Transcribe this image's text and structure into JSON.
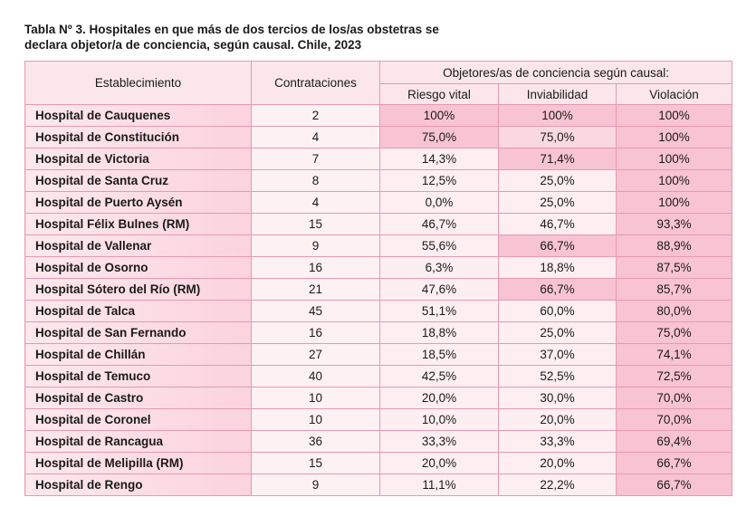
{
  "caption": {
    "line1": "Tabla Nº 3. Hospitales en que más de dos tercios de los/as obstetras se",
    "line2": "declara objetor/a de conciencia, según causal. Chile, 2023"
  },
  "headers": {
    "establecimiento": "Establecimiento",
    "contrataciones": "Contrataciones",
    "group": "Objetores/as de conciencia según causal:",
    "riesgo": "Riesgo vital",
    "inviabilidad": "Inviabilidad",
    "violacion": "Violación"
  },
  "rows": [
    {
      "name": "Hospital de Cauquenes",
      "contrataciones": "2",
      "riesgo": "100%",
      "inviabilidad": "100%",
      "violacion": "100%",
      "shade": [
        "hi",
        "hi",
        "hi"
      ]
    },
    {
      "name": "Hospital de Constitución",
      "contrataciones": "4",
      "riesgo": "75,0%",
      "inviabilidad": "75,0%",
      "violacion": "100%",
      "shade": [
        "hi",
        "mid",
        "hi"
      ]
    },
    {
      "name": "Hospital de Victoria",
      "contrataciones": "7",
      "riesgo": "14,3%",
      "inviabilidad": "71,4%",
      "violacion": "100%",
      "shade": [
        "lo",
        "hi",
        "hi"
      ]
    },
    {
      "name": "Hospital de Santa Cruz",
      "contrataciones": "8",
      "riesgo": "12,5%",
      "inviabilidad": "25,0%",
      "violacion": "100%",
      "shade": [
        "lo",
        "lo",
        "hi"
      ]
    },
    {
      "name": "Hospital de Puerto Aysén",
      "contrataciones": "4",
      "riesgo": "0,0%",
      "inviabilidad": "25,0%",
      "violacion": "100%",
      "shade": [
        "lo",
        "lo",
        "hi"
      ]
    },
    {
      "name": "Hospital Félix Bulnes (RM)",
      "contrataciones": "15",
      "riesgo": "46,7%",
      "inviabilidad": "46,7%",
      "violacion": "93,3%",
      "shade": [
        "lo",
        "lo",
        "hi"
      ]
    },
    {
      "name": "Hospital de Vallenar",
      "contrataciones": "9",
      "riesgo": "55,6%",
      "inviabilidad": "66,7%",
      "violacion": "88,9%",
      "shade": [
        "lo",
        "hi",
        "hi"
      ]
    },
    {
      "name": "Hospital de Osorno",
      "contrataciones": "16",
      "riesgo": "6,3%",
      "inviabilidad": "18,8%",
      "violacion": "87,5%",
      "shade": [
        "lo",
        "lo",
        "hi"
      ]
    },
    {
      "name": "Hospital Sótero del Río (RM)",
      "contrataciones": "21",
      "riesgo": "47,6%",
      "inviabilidad": "66,7%",
      "violacion": "85,7%",
      "shade": [
        "lo",
        "hi",
        "hi"
      ]
    },
    {
      "name": "Hospital de Talca",
      "contrataciones": "45",
      "riesgo": "51,1%",
      "inviabilidad": "60,0%",
      "violacion": "80,0%",
      "shade": [
        "lo",
        "lo",
        "hi"
      ]
    },
    {
      "name": "Hospital de San Fernando",
      "contrataciones": "16",
      "riesgo": "18,8%",
      "inviabilidad": "25,0%",
      "violacion": "75,0%",
      "shade": [
        "lo",
        "lo",
        "hi"
      ]
    },
    {
      "name": "Hospital de Chillán",
      "contrataciones": "27",
      "riesgo": "18,5%",
      "inviabilidad": "37,0%",
      "violacion": "74,1%",
      "shade": [
        "lo",
        "lo",
        "hi"
      ]
    },
    {
      "name": "Hospital de Temuco",
      "contrataciones": "40",
      "riesgo": "42,5%",
      "inviabilidad": "52,5%",
      "violacion": "72,5%",
      "shade": [
        "lo",
        "lo",
        "hi"
      ]
    },
    {
      "name": "Hospital de Castro",
      "contrataciones": "10",
      "riesgo": "20,0%",
      "inviabilidad": "30,0%",
      "violacion": "70,0%",
      "shade": [
        "lo",
        "lo",
        "hi"
      ]
    },
    {
      "name": "Hospital de Coronel",
      "contrataciones": "10",
      "riesgo": "10,0%",
      "inviabilidad": "20,0%",
      "violacion": "70,0%",
      "shade": [
        "lo",
        "lo",
        "hi"
      ]
    },
    {
      "name": "Hospital de Rancagua",
      "contrataciones": "36",
      "riesgo": "33,3%",
      "inviabilidad": "33,3%",
      "violacion": "69,4%",
      "shade": [
        "lo",
        "lo",
        "hi"
      ]
    },
    {
      "name": "Hospital de Melipilla (RM)",
      "contrataciones": "15",
      "riesgo": "20,0%",
      "inviabilidad": "20,0%",
      "violacion": "66,7%",
      "shade": [
        "lo",
        "lo",
        "hi"
      ]
    },
    {
      "name": "Hospital de Rengo",
      "contrataciones": "9",
      "riesgo": "11,1%",
      "inviabilidad": "22,2%",
      "violacion": "66,7%",
      "shade": [
        "lo",
        "lo",
        "hi"
      ]
    }
  ]
}
